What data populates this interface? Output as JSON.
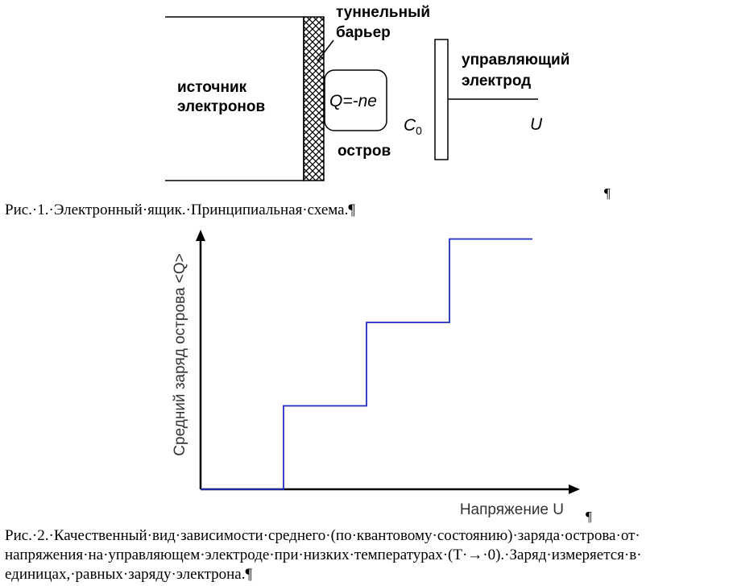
{
  "figure1": {
    "source_label_line1": "источник",
    "source_label_line2": "электронов",
    "barrier_label_line1": "туннельный",
    "barrier_label_line2": "барьер",
    "island_charge": "Q=-ne",
    "island_label": "остров",
    "electrode_label_line1": "управляющий",
    "electrode_label_line2": "электрод",
    "capacitance_label": "C",
    "capacitance_subscript": "0",
    "voltage_label": "U"
  },
  "caption1": {
    "text": "Рис.·1.·Электронный·ящик.·Принципиальная·схема.¶",
    "stray_pilcrow": "¶"
  },
  "chart_data": {
    "type": "line",
    "title": "",
    "xlabel": "Напряжение U",
    "ylabel": "Средний заряд острова <Q>",
    "step": true,
    "x": [
      0,
      1,
      1,
      2,
      2,
      3,
      3,
      4
    ],
    "y": [
      0,
      0,
      1,
      1,
      2,
      2,
      3,
      3
    ],
    "xlim": [
      0,
      4.6
    ],
    "ylim": [
      0,
      3.4
    ],
    "grid": false,
    "line_color": "#1f2dbf",
    "axis_color": "#000000"
  },
  "caption2": {
    "line1": "Рис.·2.·Качественный·вид·зависимости·среднего·(по·квантовому·состоянию)·заряда·острова·от·",
    "line2": "напряжения·на·управляющем·электроде·при·низких·температурах·(T·→·0).·Заряд·измеряется·в·",
    "line3": "единицах,·равных·заряду·электрона.¶",
    "stray_pilcrow": "¶"
  }
}
